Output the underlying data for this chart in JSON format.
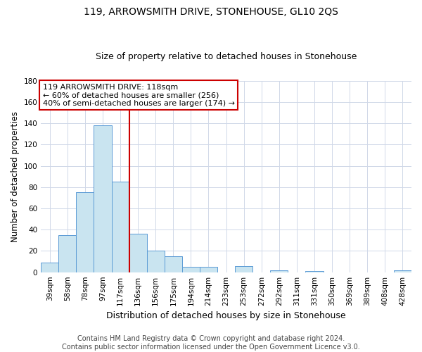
{
  "title": "119, ARROWSMITH DRIVE, STONEHOUSE, GL10 2QS",
  "subtitle": "Size of property relative to detached houses in Stonehouse",
  "xlabel": "Distribution of detached houses by size in Stonehouse",
  "ylabel": "Number of detached properties",
  "categories": [
    "39sqm",
    "58sqm",
    "78sqm",
    "97sqm",
    "117sqm",
    "136sqm",
    "156sqm",
    "175sqm",
    "194sqm",
    "214sqm",
    "233sqm",
    "253sqm",
    "272sqm",
    "292sqm",
    "311sqm",
    "331sqm",
    "350sqm",
    "369sqm",
    "389sqm",
    "408sqm",
    "428sqm"
  ],
  "values": [
    9,
    35,
    75,
    138,
    85,
    36,
    20,
    15,
    5,
    5,
    0,
    6,
    0,
    2,
    0,
    1,
    0,
    0,
    0,
    0,
    2
  ],
  "bar_color": "#c9e4f0",
  "bar_edge_color": "#5b9bd5",
  "red_line_after_index": 4,
  "red_line_color": "#cc0000",
  "ylim": [
    0,
    180
  ],
  "yticks": [
    0,
    20,
    40,
    60,
    80,
    100,
    120,
    140,
    160,
    180
  ],
  "annotation_box_text": "119 ARROWSMITH DRIVE: 118sqm\n← 60% of detached houses are smaller (256)\n40% of semi-detached houses are larger (174) →",
  "annotation_box_color": "#ffffff",
  "annotation_box_edge_color": "#cc0000",
  "footer_line1": "Contains HM Land Registry data © Crown copyright and database right 2024.",
  "footer_line2": "Contains public sector information licensed under the Open Government Licence v3.0.",
  "background_color": "#ffffff",
  "grid_color": "#d0d8e8",
  "title_fontsize": 10,
  "subtitle_fontsize": 9,
  "xlabel_fontsize": 9,
  "ylabel_fontsize": 8.5,
  "tick_fontsize": 7.5,
  "footer_fontsize": 7,
  "annotation_fontsize": 8
}
